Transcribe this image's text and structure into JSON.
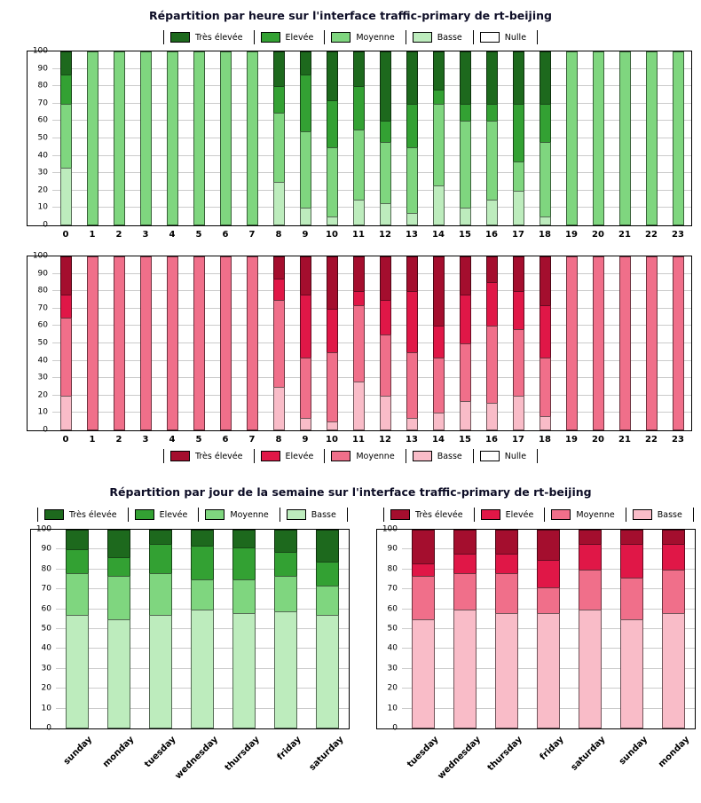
{
  "titles": {
    "hourly": "Répartition par heure sur l'interface traffic-primary de rt-beijing",
    "weekly": "Répartition par jour de la semaine sur l'interface traffic-primary de rt-beijing"
  },
  "interface": {
    "name": "traffic-primary",
    "device": "rt-beijing"
  },
  "colors": {
    "green": {
      "tres_elevee": "#1d691d",
      "elevee": "#33a133",
      "moyenne": "#7fd67f",
      "basse": "#bdecbd",
      "nulle": "#ffffff"
    },
    "red": {
      "tres_elevee": "#a40e2e",
      "elevee": "#e01747",
      "moyenne": "#f06f8a",
      "basse": "#f9bcc8",
      "nulle": "#ffffff"
    }
  },
  "chart_data": [
    {
      "id": "hourly-green",
      "type": "bar",
      "stacked": true,
      "title": "Répartition par heure sur l'interface traffic-primary de rt-beijing",
      "xlabel": "",
      "ylabel": "",
      "ylim": [
        0,
        100
      ],
      "ytick_step": 10,
      "grid": true,
      "legend_position": "top",
      "xlabel_rotation": 0,
      "legend_order": [
        "Très élevée",
        "Elevée",
        "Moyenne",
        "Basse",
        "Nulle"
      ],
      "categories": [
        "0",
        "1",
        "2",
        "3",
        "4",
        "5",
        "6",
        "7",
        "8",
        "9",
        "10",
        "11",
        "12",
        "13",
        "14",
        "15",
        "16",
        "17",
        "18",
        "19",
        "20",
        "21",
        "22",
        "23"
      ],
      "series": [
        {
          "name": "Basse",
          "color": "#bdecbd",
          "values": [
            33,
            0,
            0,
            0,
            0,
            0,
            0,
            0,
            25,
            10,
            5,
            15,
            13,
            7,
            23,
            10,
            15,
            20,
            5,
            0,
            0,
            0,
            0,
            0
          ]
        },
        {
          "name": "Moyenne",
          "color": "#7fd67f",
          "values": [
            37,
            100,
            100,
            100,
            100,
            100,
            100,
            100,
            40,
            44,
            40,
            40,
            35,
            38,
            47,
            50,
            45,
            17,
            43,
            100,
            100,
            100,
            100,
            100
          ]
        },
        {
          "name": "Elevée",
          "color": "#33a133",
          "values": [
            17,
            0,
            0,
            0,
            0,
            0,
            0,
            0,
            15,
            33,
            27,
            25,
            12,
            25,
            8,
            10,
            10,
            33,
            22,
            0,
            0,
            0,
            0,
            0
          ]
        },
        {
          "name": "Très élevée",
          "color": "#1d691d",
          "values": [
            13,
            0,
            0,
            0,
            0,
            0,
            0,
            0,
            20,
            13,
            28,
            20,
            40,
            30,
            22,
            30,
            30,
            30,
            30,
            0,
            0,
            0,
            0,
            0
          ]
        },
        {
          "name": "Nulle",
          "color": "#ffffff",
          "values": [
            0,
            0,
            0,
            0,
            0,
            0,
            0,
            0,
            0,
            0,
            0,
            0,
            0,
            0,
            0,
            0,
            0,
            0,
            0,
            0,
            0,
            0,
            0,
            0
          ]
        }
      ]
    },
    {
      "id": "hourly-red",
      "type": "bar",
      "stacked": true,
      "title": "Répartition par heure sur l'interface traffic-primary de rt-beijing",
      "xlabel": "",
      "ylabel": "",
      "ylim": [
        0,
        100
      ],
      "ytick_step": 10,
      "grid": true,
      "legend_position": "bottom",
      "xlabel_rotation": 0,
      "legend_order": [
        "Très élevée",
        "Elevée",
        "Moyenne",
        "Basse",
        "Nulle"
      ],
      "categories": [
        "0",
        "1",
        "2",
        "3",
        "4",
        "5",
        "6",
        "7",
        "8",
        "9",
        "10",
        "11",
        "12",
        "13",
        "14",
        "15",
        "16",
        "17",
        "18",
        "19",
        "20",
        "21",
        "22",
        "23"
      ],
      "series": [
        {
          "name": "Basse",
          "color": "#f9bcc8",
          "values": [
            20,
            0,
            0,
            0,
            0,
            0,
            0,
            0,
            25,
            7,
            5,
            28,
            20,
            7,
            10,
            17,
            16,
            20,
            8,
            0,
            0,
            0,
            0,
            0
          ]
        },
        {
          "name": "Moyenne",
          "color": "#f06f8a",
          "values": [
            45,
            100,
            100,
            100,
            100,
            100,
            100,
            100,
            50,
            35,
            40,
            44,
            35,
            38,
            32,
            33,
            44,
            38,
            34,
            100,
            100,
            100,
            100,
            100
          ]
        },
        {
          "name": "Elevée",
          "color": "#e01747",
          "values": [
            13,
            0,
            0,
            0,
            0,
            0,
            0,
            0,
            12,
            36,
            25,
            8,
            20,
            35,
            18,
            28,
            25,
            22,
            30,
            0,
            0,
            0,
            0,
            0
          ]
        },
        {
          "name": "Très élevée",
          "color": "#a40e2e",
          "values": [
            22,
            0,
            0,
            0,
            0,
            0,
            0,
            0,
            13,
            22,
            30,
            20,
            25,
            20,
            40,
            22,
            15,
            20,
            28,
            0,
            0,
            0,
            0,
            0
          ]
        },
        {
          "name": "Nulle",
          "color": "#ffffff",
          "values": [
            0,
            0,
            0,
            0,
            0,
            0,
            0,
            0,
            0,
            0,
            0,
            0,
            0,
            0,
            0,
            0,
            0,
            0,
            0,
            0,
            0,
            0,
            0,
            0
          ]
        }
      ]
    },
    {
      "id": "weekly-green",
      "type": "bar",
      "stacked": true,
      "title": "Répartition par jour de la semaine sur l'interface traffic-primary de rt-beijing",
      "xlabel": "",
      "ylabel": "",
      "ylim": [
        0,
        100
      ],
      "ytick_step": 10,
      "grid": true,
      "legend_position": "top",
      "xlabel_rotation": 45,
      "legend_order": [
        "Très élevée",
        "Elevée",
        "Moyenne",
        "Basse"
      ],
      "categories": [
        "sunday",
        "monday",
        "tuesday",
        "wednesday",
        "thursday",
        "friday",
        "saturday"
      ],
      "series": [
        {
          "name": "Basse",
          "color": "#bdecbd",
          "values": [
            57,
            55,
            57,
            60,
            58,
            59,
            57
          ]
        },
        {
          "name": "Moyenne",
          "color": "#7fd67f",
          "values": [
            21,
            22,
            21,
            15,
            17,
            18,
            15
          ]
        },
        {
          "name": "Elevée",
          "color": "#33a133",
          "values": [
            12,
            9,
            15,
            17,
            16,
            12,
            12
          ]
        },
        {
          "name": "Très élevée",
          "color": "#1d691d",
          "values": [
            10,
            14,
            7,
            8,
            9,
            11,
            16
          ]
        }
      ]
    },
    {
      "id": "weekly-red",
      "type": "bar",
      "stacked": true,
      "title": "Répartition par jour de la semaine sur l'interface traffic-primary de rt-beijing",
      "xlabel": "",
      "ylabel": "",
      "ylim": [
        0,
        100
      ],
      "ytick_step": 10,
      "grid": true,
      "legend_position": "top",
      "xlabel_rotation": 45,
      "legend_order": [
        "Très élevée",
        "Elevée",
        "Moyenne",
        "Basse"
      ],
      "categories": [
        "tuesday",
        "wednesday",
        "thursday",
        "friday",
        "saturday",
        "sunday",
        "monday"
      ],
      "series": [
        {
          "name": "Basse",
          "color": "#f9bcc8",
          "values": [
            55,
            60,
            58,
            58,
            60,
            55,
            58
          ]
        },
        {
          "name": "Moyenne",
          "color": "#f06f8a",
          "values": [
            22,
            18,
            20,
            13,
            20,
            21,
            22
          ]
        },
        {
          "name": "Elevée",
          "color": "#e01747",
          "values": [
            6,
            10,
            10,
            14,
            13,
            17,
            13
          ]
        },
        {
          "name": "Très élevée",
          "color": "#a40e2e",
          "values": [
            17,
            12,
            12,
            15,
            7,
            7,
            7
          ]
        }
      ]
    }
  ]
}
